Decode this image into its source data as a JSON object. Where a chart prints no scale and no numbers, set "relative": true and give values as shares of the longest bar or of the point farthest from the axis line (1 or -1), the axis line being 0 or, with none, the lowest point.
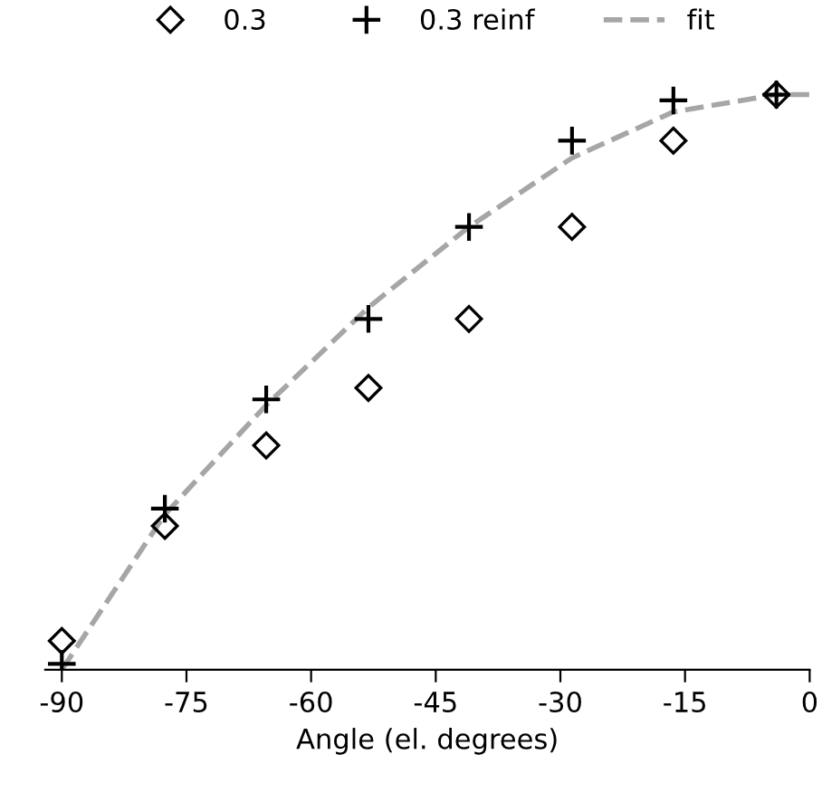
{
  "chart_data": {
    "type": "scatter",
    "relative": true,
    "xlabel": "Angle (el. degrees)",
    "xlim": [
      -92,
      0
    ],
    "xticks": [
      -90,
      -75,
      -60,
      -45,
      -30,
      -15,
      0
    ],
    "grid": false,
    "legend": "top",
    "series": [
      {
        "name": "0.3",
        "color": "#000000",
        "marker": "diamond",
        "x": [
          -90,
          -77.6,
          -65.4,
          -53.1,
          -41,
          -28.6,
          -16.4,
          -4
        ],
        "values": [
          0.05,
          0.25,
          0.39,
          0.49,
          0.61,
          0.77,
          0.92,
          1
        ]
      },
      {
        "name": "0.3 reinf",
        "color": "#000000",
        "marker": "cross",
        "x": [
          -90,
          -77.6,
          -65.4,
          -53.1,
          -41,
          -28.6,
          -16.4,
          -4
        ],
        "values": [
          0.01,
          0.28,
          0.47,
          0.61,
          0.77,
          0.92,
          0.99,
          1
        ]
      },
      {
        "name": "fit",
        "type": "line",
        "color": "#a6a6a6",
        "line_style": "dashed",
        "marker": "none",
        "x": [
          -90,
          -77.6,
          -65.4,
          -53.1,
          -41,
          -28.6,
          -16.4,
          -4,
          0
        ],
        "values": [
          0,
          0.27,
          0.46,
          0.63,
          0.77,
          0.89,
          0.97,
          1,
          1
        ]
      }
    ]
  }
}
